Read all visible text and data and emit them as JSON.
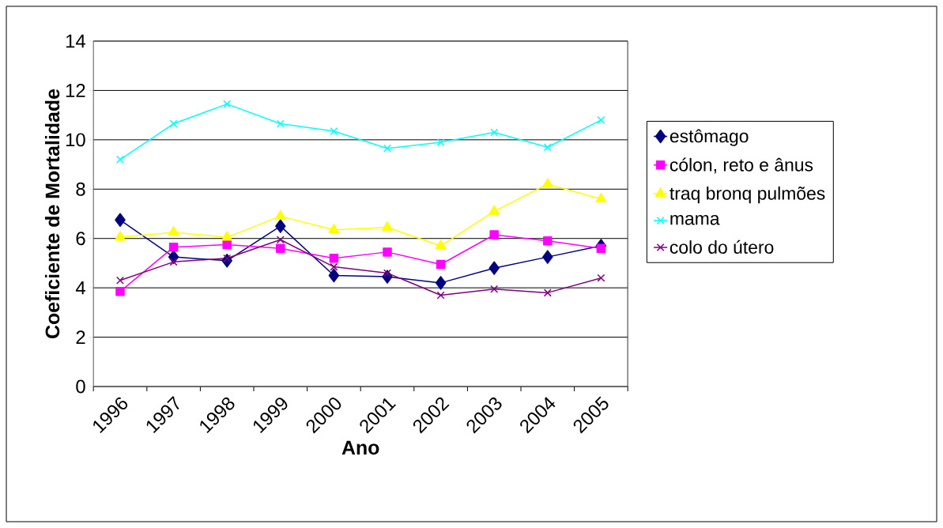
{
  "chart_data": {
    "type": "line",
    "xlabel": "Ano",
    "ylabel": "Coeficiente de Mortalidade",
    "categories": [
      "1996",
      "1997",
      "1998",
      "1999",
      "2000",
      "2001",
      "2002",
      "2003",
      "2004",
      "2005"
    ],
    "series": [
      {
        "name": "estômago",
        "color": "#000080",
        "marker": "diamond",
        "values": [
          6.75,
          5.25,
          5.1,
          6.5,
          4.5,
          4.45,
          4.2,
          4.8,
          5.25,
          5.7
        ]
      },
      {
        "name": "cólon, reto e ânus",
        "color": "#ff00ff",
        "marker": "square",
        "values": [
          3.85,
          5.65,
          5.75,
          5.6,
          5.2,
          5.45,
          4.95,
          6.15,
          5.9,
          5.6
        ]
      },
      {
        "name": "traq bronq pulmões",
        "color": "#ffff00",
        "marker": "triangle",
        "values": [
          6.05,
          6.25,
          6.05,
          6.9,
          6.35,
          6.45,
          5.7,
          7.1,
          8.2,
          7.6
        ]
      },
      {
        "name": "mama",
        "color": "#00ffff",
        "marker": "cross",
        "values": [
          9.2,
          10.65,
          11.45,
          10.65,
          10.35,
          9.65,
          9.9,
          10.3,
          9.7,
          10.8
        ]
      },
      {
        "name": "colo do útero",
        "color": "#800080",
        "marker": "cross",
        "values": [
          4.3,
          5.05,
          5.2,
          5.95,
          4.85,
          4.6,
          3.7,
          3.95,
          3.8,
          4.4
        ]
      }
    ],
    "ylim": [
      0,
      14
    ],
    "yticks": [
      0,
      2,
      4,
      6,
      8,
      10,
      12,
      14
    ],
    "grid": "y",
    "legend": "right",
    "line_style": "solid"
  }
}
